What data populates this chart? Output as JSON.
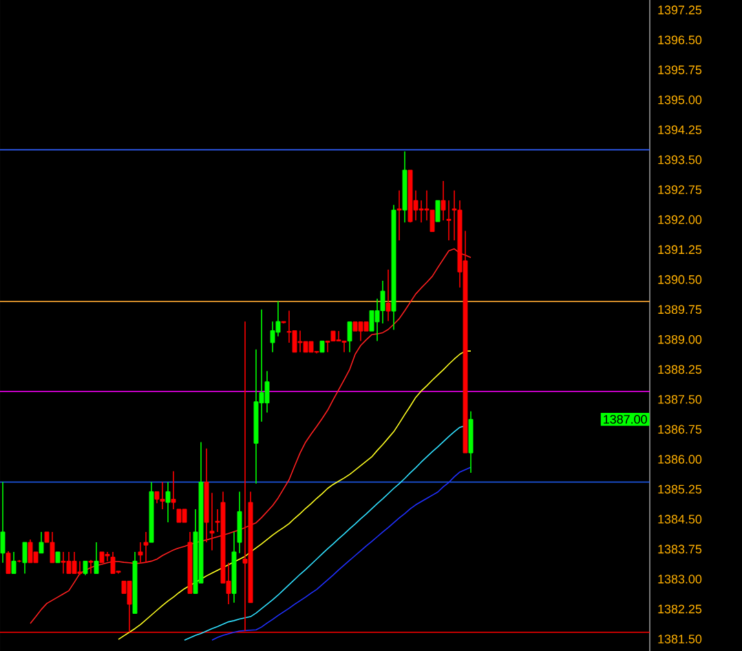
{
  "chart_data": {
    "type": "candlestick",
    "categories": [
      null,
      null,
      null,
      null,
      null,
      null,
      null,
      null,
      null,
      null,
      null,
      null,
      null,
      null,
      null,
      null,
      null,
      null,
      null,
      null,
      null,
      null,
      null,
      null,
      null,
      null,
      null,
      null,
      null,
      null,
      null,
      null,
      null,
      null,
      null,
      null,
      null,
      null,
      null,
      null,
      null,
      null,
      null,
      null,
      null,
      null,
      null,
      null,
      null,
      null,
      null,
      null,
      null,
      null,
      null,
      null,
      null,
      null,
      null,
      null,
      null,
      null,
      null,
      null,
      null,
      null,
      null,
      null,
      null,
      null,
      null,
      null,
      null,
      null,
      null,
      null,
      null,
      null,
      null,
      null,
      null,
      null,
      null,
      null,
      null,
      null
    ],
    "ohlc": [
      [
        1383.65,
        1385.43,
        1383.41,
        1384.18
      ],
      [
        1383.65,
        1383.7,
        1383.14,
        1383.14
      ],
      [
        1383.14,
        1383.68,
        1383.14,
        1383.45
      ],
      [
        1383.45,
        1383.48,
        1383.42,
        1383.45
      ],
      [
        1383.41,
        1383.92,
        1383.14,
        1383.92
      ],
      [
        1383.92,
        1383.99,
        1383.41,
        1383.41
      ],
      [
        1383.68,
        1383.68,
        1383.41,
        1383.41
      ],
      [
        1383.65,
        1384.18,
        1383.65,
        1383.92
      ],
      [
        1384.18,
        1384.18,
        1383.92,
        1383.92
      ],
      [
        1383.92,
        1384.18,
        1383.41,
        1383.41
      ],
      [
        1383.41,
        1383.68,
        1383.41,
        1383.68
      ],
      [
        1383.45,
        1383.68,
        1383.14,
        1383.42
      ],
      [
        1383.45,
        1383.68,
        1383.14,
        1383.14
      ],
      [
        1383.45,
        1383.68,
        1383.14,
        1383.14
      ],
      [
        1383.18,
        1383.45,
        1383.1,
        1383.14
      ],
      [
        1383.14,
        1383.45,
        1383.1,
        1383.45
      ],
      [
        1383.45,
        1383.48,
        1383.14,
        1383.42
      ],
      [
        1383.14,
        1383.92,
        1383.14,
        1383.45
      ],
      [
        1383.68,
        1383.68,
        1383.41,
        1383.41
      ],
      [
        1383.62,
        1383.68,
        1383.45,
        1383.58
      ],
      [
        1383.55,
        1383.68,
        1383.14,
        1383.14
      ],
      [
        1383.2,
        1383.2,
        1383.14,
        1383.17
      ],
      [
        1382.95,
        1382.95,
        1382.64,
        1382.64
      ],
      [
        1382.95,
        1382.95,
        1381.67,
        1382.37
      ],
      [
        1382.14,
        1383.68,
        1382.14,
        1383.45
      ],
      [
        1383.68,
        1383.92,
        1383.41,
        1383.6
      ],
      [
        1383.92,
        1384.18,
        1383.41,
        1383.85
      ],
      [
        1383.92,
        1385.43,
        1383.92,
        1385.19
      ],
      [
        1385.19,
        1385.19,
        1384.9,
        1385.0
      ],
      [
        1385.0,
        1385.43,
        1384.75,
        1384.95
      ],
      [
        1384.92,
        1385.43,
        1384.42,
        1385.19
      ],
      [
        1385.0,
        1385.7,
        1384.75,
        1384.92
      ],
      [
        1384.75,
        1384.75,
        1384.42,
        1384.42
      ],
      [
        1384.75,
        1384.75,
        1384.42,
        1384.42
      ],
      [
        1383.92,
        1384.18,
        1382.64,
        1382.64
      ],
      [
        1382.64,
        1384.75,
        1382.64,
        1384.18
      ],
      [
        1382.9,
        1386.43,
        1382.9,
        1385.43
      ],
      [
        1385.43,
        1386.27,
        1383.92,
        1384.42
      ],
      [
        1384.2,
        1385.16,
        1383.72,
        1384.15
      ],
      [
        1384.45,
        1384.75,
        1384.18,
        1384.42
      ],
      [
        1384.92,
        1385.19,
        1382.9,
        1382.9
      ],
      [
        1382.95,
        1383.41,
        1382.37,
        1382.64
      ],
      [
        1382.64,
        1384.18,
        1382.41,
        1383.68
      ],
      [
        1383.92,
        1385.19,
        1383.65,
        1384.69
      ],
      [
        1383.5,
        1389.45,
        1381.7,
        1383.4
      ],
      [
        1384.92,
        1385.19,
        1382.41,
        1382.41
      ],
      [
        1386.4,
        1388.75,
        1385.39,
        1387.44
      ],
      [
        1387.41,
        1389.75,
        1386.94,
        1387.67
      ],
      [
        1387.41,
        1388.21,
        1387.17,
        1387.94
      ],
      [
        1388.92,
        1389.45,
        1388.68,
        1389.22
      ],
      [
        1389.18,
        1389.96,
        1389.08,
        1389.45
      ],
      [
        1389.45,
        1389.45,
        1389.4,
        1389.42
      ],
      [
        1389.2,
        1389.72,
        1388.92,
        1389.18
      ],
      [
        1389.22,
        1389.22,
        1388.68,
        1388.68
      ],
      [
        1388.95,
        1389.22,
        1388.68,
        1388.92
      ],
      [
        1388.95,
        1388.95,
        1388.68,
        1388.68
      ],
      [
        1388.95,
        1388.95,
        1388.68,
        1388.68
      ],
      [
        1388.7,
        1388.7,
        1388.65,
        1388.68
      ],
      [
        1388.68,
        1388.96,
        1388.68,
        1388.96
      ],
      [
        1388.96,
        1388.96,
        1388.68,
        1388.93
      ],
      [
        1389.21,
        1389.21,
        1388.96,
        1388.96
      ],
      [
        1388.99,
        1389.21,
        1388.96,
        1388.96
      ],
      [
        1388.96,
        1388.96,
        1388.68,
        1388.93
      ],
      [
        1388.96,
        1389.44,
        1388.68,
        1389.44
      ],
      [
        1389.44,
        1389.44,
        1389.21,
        1389.21
      ],
      [
        1389.44,
        1389.44,
        1388.96,
        1389.21
      ],
      [
        1389.44,
        1389.44,
        1389.21,
        1389.21
      ],
      [
        1389.21,
        1389.72,
        1389.21,
        1389.72
      ],
      [
        1389.44,
        1390.02,
        1388.96,
        1389.72
      ],
      [
        1389.72,
        1390.47,
        1389.4,
        1390.21
      ],
      [
        1389.91,
        1390.75,
        1389.46,
        1389.71
      ],
      [
        1389.71,
        1392.37,
        1389.24,
        1392.24
      ],
      [
        1392.27,
        1392.73,
        1391.48,
        1392.24
      ],
      [
        1392.24,
        1393.71,
        1391.93,
        1393.24
      ],
      [
        1393.24,
        1393.24,
        1391.93,
        1391.95
      ],
      [
        1392.48,
        1392.73,
        1391.98,
        1392.24
      ],
      [
        1392.27,
        1392.48,
        1391.93,
        1392.24
      ],
      [
        1392.27,
        1392.73,
        1391.98,
        1392.24
      ],
      [
        1392.24,
        1392.24,
        1391.7,
        1391.7
      ],
      [
        1391.95,
        1392.48,
        1391.95,
        1392.48
      ],
      [
        1392.48,
        1392.97,
        1391.98,
        1392.24
      ],
      [
        1392.01,
        1392.48,
        1391.48,
        1391.98
      ],
      [
        1392.27,
        1392.73,
        1391.48,
        1392.24
      ],
      [
        1392.24,
        1392.48,
        1390.3,
        1390.69
      ],
      [
        1390.97,
        1391.72,
        1386.16,
        1386.16
      ],
      [
        1386.16,
        1387.2,
        1385.66,
        1387.0
      ]
    ],
    "colors": [
      "#00ff00",
      "#ff0000",
      "#00ff00",
      "#ff0000",
      "#00ff00",
      "#ff0000",
      "#ff0000",
      "#00ff00",
      "#ff0000",
      "#ff0000",
      "#00ff00",
      "#ff0000",
      "#ff0000",
      "#ff0000",
      "#ff0000",
      "#00ff00",
      "#ff0000",
      "#00ff00",
      "#ff0000",
      "#ff0000",
      "#ff0000",
      "#ff0000",
      "#ff0000",
      "#ff0000",
      "#00ff00",
      "#ff0000",
      "#ff0000",
      "#00ff00",
      "#ff0000",
      "#ff0000",
      "#00ff00",
      "#ff0000",
      "#ff0000",
      "#ff0000",
      "#ff0000",
      "#00ff00",
      "#00ff00",
      "#ff0000",
      "#ff0000",
      "#ff0000",
      "#ff0000",
      "#ff0000",
      "#00ff00",
      "#00ff00",
      "#ff0000",
      "#ff0000",
      "#00ff00",
      "#00ff00",
      "#00ff00",
      "#00ff00",
      "#00ff00",
      "#ff0000",
      "#ff0000",
      "#ff0000",
      "#ff0000",
      "#ff0000",
      "#ff0000",
      "#ff0000",
      "#00ff00",
      "#ff0000",
      "#ff0000",
      "#ff0000",
      "#ff0000",
      "#00ff00",
      "#ff0000",
      "#ff0000",
      "#ff0000",
      "#00ff00",
      "#00ff00",
      "#00ff00",
      "#ff0000",
      "#00ff00",
      "#ff0000",
      "#00ff00",
      "#ff0000",
      "#ff0000",
      "#ff0000",
      "#ff0000",
      "#ff0000",
      "#00ff00",
      "#ff0000",
      "#ff0000",
      "#ff0000",
      "#ff0000",
      "#ff0000",
      "#00ff00"
    ],
    "series": [
      {
        "type": "line",
        "color": "#ff2020",
        "values": [
          null,
          null,
          null,
          null,
          null,
          1381.89,
          1382.06,
          1382.24,
          1382.39,
          1382.47,
          1382.55,
          1382.63,
          1382.71,
          1382.92,
          1383.14,
          1383.22,
          1383.29,
          1383.34,
          1383.37,
          1383.41,
          1383.44,
          1383.44,
          1383.42,
          1383.41,
          1383.39,
          1383.4,
          1383.42,
          1383.45,
          1383.5,
          1383.59,
          1383.66,
          1383.73,
          1383.78,
          1383.82,
          1383.87,
          1383.91,
          1383.95,
          1383.98,
          1384.02,
          1384.06,
          1384.1,
          1384.14,
          1384.19,
          1384.23,
          1384.29,
          1384.35,
          1384.41,
          1384.54,
          1384.69,
          1384.84,
          1385.03,
          1385.26,
          1385.49,
          1385.83,
          1386.16,
          1386.43,
          1386.63,
          1386.82,
          1387.02,
          1387.23,
          1387.49,
          1387.74,
          1387.99,
          1388.25,
          1388.63,
          1388.85,
          1388.99,
          1389.12,
          1389.14,
          1389.17,
          1389.25,
          1389.38,
          1389.52,
          1389.72,
          1389.93,
          1390.14,
          1390.29,
          1390.43,
          1390.58,
          1390.8,
          1391.01,
          1391.22,
          1391.27,
          1391.16,
          1391.11,
          1391.05
        ]
      },
      {
        "type": "line",
        "color": "#ffff20",
        "values": [
          null,
          null,
          null,
          null,
          null,
          null,
          null,
          null,
          null,
          null,
          null,
          null,
          null,
          null,
          null,
          null,
          null,
          null,
          null,
          null,
          null,
          1381.49,
          1381.58,
          1381.67,
          1381.76,
          1381.86,
          1381.98,
          1382.1,
          1382.22,
          1382.34,
          1382.45,
          1382.55,
          1382.66,
          1382.76,
          1382.84,
          null,
          1383.0,
          1383.08,
          1383.15,
          1383.22,
          1383.29,
          1383.36,
          1383.43,
          1383.5,
          1383.57,
          1383.68,
          1383.78,
          1383.88,
          1383.99,
          1384.1,
          1384.2,
          1384.29,
          1384.39,
          1384.52,
          1384.64,
          1384.77,
          1384.89,
          1385.02,
          1385.14,
          1385.27,
          1385.37,
          1385.45,
          1385.53,
          1385.62,
          1385.73,
          1385.84,
          1385.95,
          1386.06,
          1386.22,
          1386.37,
          1386.53,
          1386.69,
          1386.9,
          1387.12,
          1387.33,
          1387.55,
          1387.71,
          1387.84,
          1387.98,
          1388.11,
          1388.24,
          1388.38,
          1388.51,
          1388.63,
          1388.71,
          1388.71
        ]
      },
      {
        "type": "line",
        "color": "#30e0ff",
        "values": [
          null,
          null,
          null,
          null,
          null,
          null,
          null,
          null,
          null,
          null,
          null,
          null,
          null,
          null,
          null,
          null,
          null,
          null,
          null,
          null,
          null,
          null,
          null,
          null,
          null,
          null,
          null,
          null,
          null,
          null,
          null,
          null,
          null,
          1381.47,
          1381.53,
          1381.59,
          1381.64,
          1381.7,
          1381.76,
          1381.81,
          1381.87,
          1381.93,
          1381.96,
          1382.0,
          1382.03,
          1382.06,
          1382.15,
          1382.26,
          1382.37,
          1382.48,
          1382.6,
          1382.73,
          1382.86,
          1382.99,
          1383.12,
          1383.24,
          1383.37,
          1383.5,
          1383.63,
          1383.76,
          1383.88,
          1384.01,
          1384.13,
          1384.26,
          1384.38,
          1384.51,
          1384.63,
          1384.76,
          1384.89,
          1385.01,
          1385.14,
          1385.27,
          1385.39,
          1385.52,
          1385.66,
          1385.79,
          1385.93,
          1386.06,
          1386.19,
          1386.31,
          1386.44,
          1386.57,
          1386.69,
          1386.8,
          1386.84,
          null
        ]
      },
      {
        "type": "line",
        "color": "#2030ff",
        "values": [
          null,
          null,
          null,
          null,
          null,
          null,
          null,
          null,
          null,
          null,
          null,
          null,
          null,
          null,
          null,
          null,
          null,
          null,
          null,
          null,
          null,
          null,
          null,
          null,
          null,
          null,
          null,
          null,
          null,
          null,
          null,
          null,
          null,
          null,
          null,
          null,
          null,
          null,
          1381.47,
          1381.54,
          1381.59,
          1381.63,
          1381.67,
          1381.7,
          1381.71,
          1381.72,
          1381.73,
          1381.8,
          1381.9,
          1381.99,
          1382.09,
          1382.18,
          1382.27,
          1382.37,
          1382.46,
          1382.55,
          1382.65,
          1382.74,
          1382.86,
          1382.98,
          1383.1,
          1383.23,
          1383.35,
          1383.47,
          1383.59,
          1383.71,
          1383.83,
          1383.94,
          1384.06,
          1384.18,
          1384.29,
          1384.41,
          1384.53,
          1384.64,
          1384.76,
          1384.86,
          1384.94,
          1385.02,
          1385.1,
          1385.18,
          1385.31,
          1385.42,
          1385.56,
          1385.68,
          1385.74,
          1385.8
        ]
      }
    ],
    "ylim": [
      1381.2,
      1397.5
    ],
    "yticks": [
      {
        "value": 1381.5,
        "label": "1381.50"
      },
      {
        "value": 1382.25,
        "label": "1382.25"
      },
      {
        "value": 1383,
        "label": "1383.00"
      },
      {
        "value": 1383.75,
        "label": "1383.75"
      },
      {
        "value": 1384.5,
        "label": "1384.50"
      },
      {
        "value": 1385.25,
        "label": "1385.25"
      },
      {
        "value": 1386,
        "label": "1386.00"
      },
      {
        "value": 1386.75,
        "label": "1386.75"
      },
      {
        "value": 1387.5,
        "label": "1387.50"
      },
      {
        "value": 1388.25,
        "label": "1388.25"
      },
      {
        "value": 1389,
        "label": "1389.00"
      },
      {
        "value": 1389.75,
        "label": "1389.75"
      },
      {
        "value": 1390.5,
        "label": "1390.50"
      },
      {
        "value": 1391.25,
        "label": "1391.25"
      },
      {
        "value": 1392,
        "label": "1392.00"
      },
      {
        "value": 1392.75,
        "label": "1392.75"
      },
      {
        "value": 1393.5,
        "label": "1393.50"
      },
      {
        "value": 1394.25,
        "label": "1394.25"
      },
      {
        "value": 1395,
        "label": "1395.00"
      },
      {
        "value": 1395.75,
        "label": "1395.75"
      },
      {
        "value": 1396.5,
        "label": "1396.50"
      },
      {
        "value": 1397.25,
        "label": "1397.25"
      }
    ],
    "tick_labels": "y",
    "ref_lines": [
      {
        "axis": "y",
        "value": 1393.75,
        "color": "#3060ff"
      },
      {
        "axis": "y",
        "value": 1389.95,
        "color": "#f0a030"
      },
      {
        "axis": "y",
        "value": 1387.7,
        "color": "#ff00ff"
      },
      {
        "axis": "y",
        "value": 1385.43,
        "color": "#2060ff"
      },
      {
        "axis": "y",
        "value": 1381.67,
        "color": "#ff0000"
      }
    ],
    "annotations": [
      "1387.00"
    ]
  }
}
